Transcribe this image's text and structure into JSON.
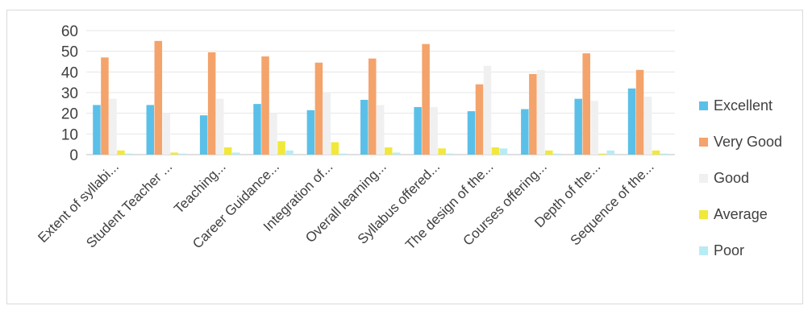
{
  "chart_data": {
    "type": "bar",
    "title": "",
    "xlabel": "",
    "ylabel": "",
    "ylim": [
      0,
      60
    ],
    "yticks": [
      0,
      10,
      20,
      30,
      40,
      50,
      60
    ],
    "grid": true,
    "legend_position": "right",
    "categories": [
      "Extent of syllabi...",
      "Student Teacher ...",
      "Teaching...",
      "Career Guidance...",
      "Integration of...",
      "Overall learning...",
      "Syllabus offered...",
      "The design of the...",
      "Courses offering...",
      "Depth of the...",
      "Sequence of the..."
    ],
    "series": [
      {
        "name": "Excellent",
        "color": "#5bc0e8",
        "values": [
          24,
          24,
          19,
          24.5,
          21.5,
          26.5,
          23,
          21,
          22,
          27,
          32
        ]
      },
      {
        "name": "Very Good",
        "color": "#f4a36b",
        "values": [
          47,
          55,
          49.5,
          47.5,
          44.5,
          46.5,
          53.5,
          34,
          39,
          49,
          41
        ]
      },
      {
        "name": "Good",
        "color": "#f0f0f0",
        "values": [
          27,
          20,
          27,
          20,
          30,
          24,
          23,
          43,
          41,
          26,
          28
        ]
      },
      {
        "name": "Average",
        "color": "#f2e83a",
        "values": [
          2,
          1,
          3.5,
          6.5,
          6,
          3.5,
          3,
          3.5,
          2,
          0.5,
          2
        ]
      },
      {
        "name": "Poor",
        "color": "#b8ecf4",
        "values": [
          0.5,
          0.5,
          1,
          2,
          0.5,
          1,
          0.5,
          3,
          0.5,
          2,
          0.5
        ]
      }
    ]
  }
}
